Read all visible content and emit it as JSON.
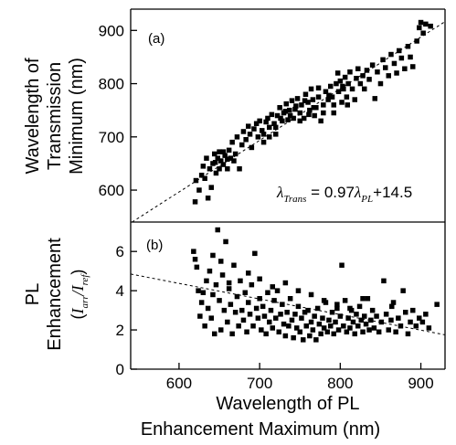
{
  "chart_data": [
    {
      "panel": "a",
      "type": "scatter",
      "panel_label": "(a)",
      "ylabel_lines": [
        "Wavelength of",
        "Transmission",
        "Minimum (nm)"
      ],
      "xlim": [
        540,
        930
      ],
      "ylim": [
        540,
        940
      ],
      "yticks": [
        600,
        700,
        800,
        900
      ],
      "grid": false,
      "marker": "square",
      "fit": {
        "slope": 0.97,
        "intercept": 14.5,
        "style": "dashed"
      },
      "equation": {
        "lhs_symbol": "λ",
        "lhs_sub": "Trans",
        "middle": " = 0.97",
        "rhs_symbol": "λ",
        "rhs_sub": "PL",
        "suffix": "+14.5"
      },
      "points": [
        [
          620,
          578
        ],
        [
          621,
          618
        ],
        [
          625,
          600
        ],
        [
          628,
          628
        ],
        [
          630,
          645
        ],
        [
          632,
          622
        ],
        [
          634,
          660
        ],
        [
          636,
          585
        ],
        [
          638,
          640
        ],
        [
          640,
          605
        ],
        [
          642,
          650
        ],
        [
          644,
          668
        ],
        [
          646,
          632
        ],
        [
          648,
          660
        ],
        [
          650,
          672
        ],
        [
          652,
          655
        ],
        [
          655,
          648
        ],
        [
          657,
          665
        ],
        [
          660,
          640
        ],
        [
          662,
          675
        ],
        [
          664,
          660
        ],
        [
          666,
          690
        ],
        [
          668,
          655
        ],
        [
          670,
          668
        ],
        [
          672,
          700
        ],
        [
          675,
          640
        ],
        [
          678,
          685
        ],
        [
          680,
          710
        ],
        [
          683,
          695
        ],
        [
          686,
          720
        ],
        [
          688,
          705
        ],
        [
          690,
          680
        ],
        [
          693,
          715
        ],
        [
          696,
          725
        ],
        [
          698,
          700
        ],
        [
          700,
          730
        ],
        [
          703,
          712
        ],
        [
          705,
          690
        ],
        [
          708,
          728
        ],
        [
          710,
          735
        ],
        [
          712,
          718
        ],
        [
          715,
          742
        ],
        [
          718,
          725
        ],
        [
          720,
          705
        ],
        [
          722,
          740
        ],
        [
          725,
          755
        ],
        [
          728,
          730
        ],
        [
          730,
          745
        ],
        [
          733,
          762
        ],
        [
          735,
          732
        ],
        [
          737,
          750
        ],
        [
          740,
          768
        ],
        [
          742,
          735
        ],
        [
          745,
          758
        ],
        [
          747,
          772
        ],
        [
          750,
          745
        ],
        [
          752,
          760
        ],
        [
          755,
          735
        ],
        [
          757,
          780
        ],
        [
          760,
          765
        ],
        [
          762,
          750
        ],
        [
          764,
          790
        ],
        [
          766,
          770
        ],
        [
          768,
          740
        ],
        [
          770,
          755
        ],
        [
          773,
          775
        ],
        [
          776,
          730
        ],
        [
          779,
          760
        ],
        [
          782,
          785
        ],
        [
          785,
          770
        ],
        [
          788,
          795
        ],
        [
          790,
          775
        ],
        [
          792,
          745
        ],
        [
          795,
          800
        ],
        [
          798,
          785
        ],
        [
          800,
          805
        ],
        [
          802,
          765
        ],
        [
          804,
          790
        ],
        [
          806,
          812
        ],
        [
          808,
          775
        ],
        [
          810,
          800
        ],
        [
          812,
          822
        ],
        [
          815,
          790
        ],
        [
          818,
          770
        ],
        [
          820,
          810
        ],
        [
          822,
          828
        ],
        [
          825,
          800
        ],
        [
          828,
          815
        ],
        [
          830,
          790
        ],
        [
          833,
          825
        ],
        [
          836,
          808
        ],
        [
          840,
          835
        ],
        [
          843,
          772
        ],
        [
          846,
          822
        ],
        [
          850,
          800
        ],
        [
          853,
          845
        ],
        [
          856,
          830
        ],
        [
          860,
          815
        ],
        [
          863,
          855
        ],
        [
          867,
          838
        ],
        [
          870,
          820
        ],
        [
          873,
          862
        ],
        [
          876,
          848
        ],
        [
          880,
          828
        ],
        [
          884,
          870
        ],
        [
          887,
          850
        ],
        [
          890,
          832
        ],
        [
          895,
          880
        ],
        [
          898,
          905
        ],
        [
          900,
          915
        ],
        [
          903,
          895
        ],
        [
          906,
          912
        ],
        [
          912,
          908
        ],
        [
          645,
          652
        ],
        [
          650,
          640
        ],
        [
          655,
          672
        ],
        [
          660,
          658
        ],
        [
          705,
          705
        ],
        [
          712,
          700
        ],
        [
          720,
          718
        ],
        [
          726,
          735
        ],
        [
          732,
          748
        ],
        [
          738,
          740
        ],
        [
          744,
          752
        ],
        [
          750,
          730
        ],
        [
          756,
          768
        ],
        [
          761,
          742
        ],
        [
          767,
          755
        ],
        [
          773,
          792
        ],
        [
          779,
          745
        ],
        [
          786,
          778
        ],
        [
          792,
          760
        ],
        [
          797,
          820
        ],
        [
          803,
          795
        ],
        [
          809,
          760
        ]
      ]
    },
    {
      "panel": "b",
      "type": "scatter",
      "panel_label": "(b)",
      "ylabel_lines": [
        "PL",
        "Enhancement"
      ],
      "ylabel_formula": {
        "open": "(",
        "num": "I",
        "num_sub": "arr",
        "slash": "/",
        "den": "I",
        "den_sub": "ref",
        "close": ")"
      },
      "xlabel_lines": [
        "Wavelength of PL",
        "Enhancement Maximum (nm)"
      ],
      "xlim": [
        540,
        930
      ],
      "ylim": [
        0,
        7.5
      ],
      "xticks": [
        600,
        700,
        800,
        900
      ],
      "yticks": [
        0,
        2,
        4,
        6
      ],
      "grid": false,
      "marker": "square",
      "fit": {
        "points": [
          [
            540,
            4.85
          ],
          [
            930,
            1.75
          ]
        ],
        "style": "dashed"
      },
      "points": [
        [
          618,
          6.0
        ],
        [
          620,
          5.6
        ],
        [
          622,
          5.2
        ],
        [
          624,
          4.0
        ],
        [
          626,
          2.7
        ],
        [
          628,
          3.4
        ],
        [
          630,
          3.9
        ],
        [
          632,
          2.2
        ],
        [
          634,
          4.5
        ],
        [
          636,
          3.1
        ],
        [
          638,
          5.0
        ],
        [
          640,
          2.6
        ],
        [
          642,
          3.8
        ],
        [
          644,
          1.8
        ],
        [
          646,
          4.3
        ],
        [
          648,
          7.1
        ],
        [
          650,
          3.5
        ],
        [
          652,
          2.0
        ],
        [
          654,
          4.8
        ],
        [
          656,
          3.0
        ],
        [
          658,
          6.5
        ],
        [
          660,
          2.4
        ],
        [
          662,
          4.1
        ],
        [
          664,
          3.3
        ],
        [
          666,
          1.8
        ],
        [
          668,
          5.3
        ],
        [
          670,
          2.9
        ],
        [
          672,
          3.7
        ],
        [
          674,
          2.2
        ],
        [
          676,
          4.5
        ],
        [
          678,
          3.0
        ],
        [
          680,
          2.5
        ],
        [
          682,
          3.9
        ],
        [
          684,
          1.9
        ],
        [
          686,
          3.4
        ],
        [
          688,
          2.8
        ],
        [
          690,
          4.3
        ],
        [
          692,
          2.2
        ],
        [
          694,
          5.9
        ],
        [
          696,
          3.1
        ],
        [
          698,
          2.6
        ],
        [
          700,
          3.6
        ],
        [
          702,
          2.0
        ],
        [
          704,
          3.2
        ],
        [
          706,
          2.7
        ],
        [
          708,
          1.8
        ],
        [
          710,
          3.9
        ],
        [
          712,
          2.4
        ],
        [
          714,
          3.0
        ],
        [
          716,
          2.1
        ],
        [
          718,
          3.5
        ],
        [
          720,
          2.6
        ],
        [
          722,
          4.0
        ],
        [
          724,
          1.9
        ],
        [
          726,
          2.8
        ],
        [
          728,
          3.3
        ],
        [
          730,
          2.3
        ],
        [
          732,
          1.7
        ],
        [
          734,
          2.9
        ],
        [
          736,
          2.2
        ],
        [
          738,
          3.6
        ],
        [
          740,
          2.5
        ],
        [
          742,
          1.6
        ],
        [
          744,
          2.8
        ],
        [
          746,
          2.1
        ],
        [
          748,
          3.2
        ],
        [
          750,
          1.9
        ],
        [
          752,
          2.6
        ],
        [
          754,
          1.5
        ],
        [
          756,
          2.9
        ],
        [
          758,
          2.2
        ],
        [
          760,
          3.0
        ],
        [
          762,
          1.7
        ],
        [
          764,
          2.4
        ],
        [
          766,
          2.0
        ],
        [
          768,
          2.7
        ],
        [
          770,
          1.5
        ],
        [
          772,
          3.1
        ],
        [
          774,
          2.3
        ],
        [
          776,
          1.8
        ],
        [
          778,
          2.6
        ],
        [
          780,
          2.1
        ],
        [
          782,
          3.4
        ],
        [
          784,
          1.9
        ],
        [
          786,
          2.5
        ],
        [
          788,
          2.2
        ],
        [
          790,
          2.9
        ],
        [
          792,
          1.8
        ],
        [
          794,
          2.4
        ],
        [
          796,
          3.1
        ],
        [
          798,
          2.0
        ],
        [
          800,
          2.7
        ],
        [
          802,
          5.3
        ],
        [
          804,
          2.2
        ],
        [
          806,
          3.5
        ],
        [
          808,
          1.9
        ],
        [
          810,
          2.6
        ],
        [
          812,
          2.1
        ],
        [
          814,
          3.0
        ],
        [
          816,
          2.4
        ],
        [
          818,
          1.8
        ],
        [
          820,
          2.8
        ],
        [
          822,
          2.2
        ],
        [
          824,
          3.2
        ],
        [
          826,
          2.5
        ],
        [
          828,
          1.9
        ],
        [
          830,
          2.7
        ],
        [
          832,
          2.3
        ],
        [
          834,
          3.6
        ],
        [
          836,
          2.0
        ],
        [
          838,
          2.5
        ],
        [
          840,
          3.0
        ],
        [
          842,
          2.1
        ],
        [
          845,
          2.7
        ],
        [
          848,
          1.9
        ],
        [
          851,
          2.4
        ],
        [
          854,
          4.5
        ],
        [
          857,
          2.8
        ],
        [
          860,
          2.0
        ],
        [
          863,
          2.5
        ],
        [
          866,
          3.4
        ],
        [
          869,
          1.9
        ],
        [
          872,
          2.6
        ],
        [
          875,
          2.2
        ],
        [
          878,
          4.0
        ],
        [
          881,
          2.9
        ],
        [
          884,
          1.8
        ],
        [
          887,
          2.4
        ],
        [
          890,
          3.0
        ],
        [
          894,
          2.2
        ],
        [
          898,
          2.6
        ],
        [
          902,
          2.4
        ],
        [
          906,
          2.8
        ],
        [
          910,
          2.1
        ],
        [
          920,
          3.3
        ],
        [
          642,
          5.8
        ],
        [
          652,
          5.5
        ],
        [
          662,
          4.4
        ],
        [
          686,
          4.9
        ],
        [
          700,
          4.6
        ],
        [
          716,
          4.2
        ],
        [
          732,
          4.4
        ],
        [
          748,
          4.0
        ],
        [
          764,
          3.8
        ],
        [
          780,
          3.5
        ],
        [
          796,
          3.3
        ],
        [
          812,
          3.1
        ],
        [
          828,
          3.6
        ],
        [
          864,
          3.2
        ]
      ]
    }
  ]
}
